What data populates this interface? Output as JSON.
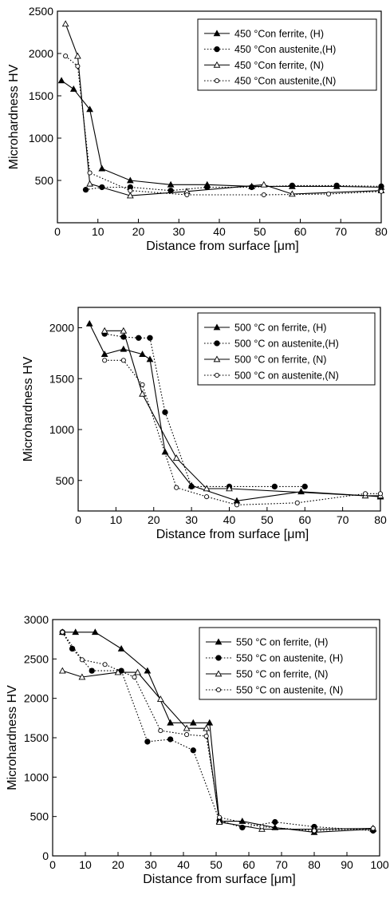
{
  "chart_data": [
    {
      "type": "line",
      "xlabel": "Distance from surface [μm]",
      "ylabel": "Microhardness HV",
      "xlim": [
        0,
        80
      ],
      "ylim": [
        0,
        2500
      ],
      "xticks": [
        0,
        10,
        20,
        30,
        40,
        50,
        60,
        70,
        80
      ],
      "yticks": [
        500,
        1000,
        1500,
        2000,
        2500
      ],
      "grid": false,
      "legend_position": "top-right",
      "series": [
        {
          "name": "450 °Con ferrite, (H)",
          "line": "solid",
          "marker": "triangle-filled",
          "x": [
            1,
            4,
            8,
            11,
            18,
            28,
            37,
            48,
            58,
            69,
            80
          ],
          "y": [
            1680,
            1580,
            1340,
            640,
            500,
            450,
            450,
            430,
            430,
            430,
            420
          ]
        },
        {
          "name": "450 °Con austenite,(H)",
          "line": "dotted",
          "marker": "circle-filled",
          "x": [
            7,
            11,
            18,
            28,
            37,
            48,
            58,
            69,
            80
          ],
          "y": [
            390,
            420,
            420,
            380,
            420,
            420,
            440,
            440,
            430
          ]
        },
        {
          "name": "450 °Con ferrite, (N)",
          "line": "solid",
          "marker": "triangle-open",
          "x": [
            2,
            5,
            8,
            18,
            32,
            51,
            58,
            80
          ],
          "y": [
            2350,
            1970,
            460,
            320,
            370,
            450,
            340,
            380
          ]
        },
        {
          "name": "450 °Con austenite,(N)",
          "line": "dotted",
          "marker": "circle-open",
          "x": [
            2,
            5,
            8,
            18,
            32,
            51,
            67,
            80
          ],
          "y": [
            1970,
            1850,
            590,
            380,
            330,
            330,
            340,
            370
          ]
        }
      ]
    },
    {
      "type": "line",
      "xlabel": "Distance from surface [μm]",
      "ylabel": "Microhardness HV",
      "xlim": [
        0,
        80
      ],
      "ylim": [
        200,
        2200
      ],
      "xticks": [
        0,
        10,
        20,
        30,
        40,
        50,
        60,
        70,
        80
      ],
      "yticks": [
        500,
        1000,
        1500,
        2000
      ],
      "grid": false,
      "legend_position": "top-right",
      "series": [
        {
          "name": "500 °C on ferrite, (H)",
          "line": "solid",
          "marker": "triangle-filled",
          "x": [
            3,
            7,
            12,
            17,
            19,
            23,
            30,
            42,
            59,
            80
          ],
          "y": [
            2040,
            1740,
            1790,
            1740,
            1690,
            780,
            450,
            300,
            390,
            340
          ]
        },
        {
          "name": "500 °C on austenite,(H)",
          "line": "dotted",
          "marker": "circle-filled",
          "x": [
            7,
            12,
            16,
            19,
            23,
            30,
            40,
            52,
            60
          ],
          "y": [
            1940,
            1910,
            1900,
            1900,
            1170,
            440,
            440,
            440,
            440
          ]
        },
        {
          "name": "500 °C on ferrite, (N)",
          "line": "solid",
          "marker": "triangle-open",
          "x": [
            7,
            12,
            17,
            26,
            34,
            40,
            76,
            80
          ],
          "y": [
            1970,
            1970,
            1350,
            720,
            420,
            420,
            350,
            350
          ]
        },
        {
          "name": "500 °C on austenite,(N)",
          "line": "dotted",
          "marker": "circle-open",
          "x": [
            7,
            12,
            17,
            26,
            34,
            42,
            58,
            76,
            80
          ],
          "y": [
            1680,
            1680,
            1440,
            430,
            340,
            260,
            280,
            370,
            370
          ]
        }
      ]
    },
    {
      "type": "line",
      "xlabel": "Distance from surface [μm]",
      "ylabel": "Microhardness HV",
      "xlim": [
        0,
        100
      ],
      "ylim": [
        0,
        3000
      ],
      "xticks": [
        0,
        10,
        20,
        30,
        40,
        50,
        60,
        70,
        80,
        90,
        100
      ],
      "yticks": [
        0,
        500,
        1000,
        1500,
        2000,
        2500,
        3000
      ],
      "grid": false,
      "legend_position": "top-right",
      "series": [
        {
          "name": "550 °C on ferrite, (H)",
          "line": "solid",
          "marker": "triangle-filled",
          "x": [
            3,
            7,
            13,
            21,
            29,
            36,
            43,
            48,
            51,
            58,
            68,
            80,
            98
          ],
          "y": [
            2840,
            2840,
            2840,
            2630,
            2350,
            1690,
            1690,
            1690,
            440,
            440,
            360,
            300,
            340
          ]
        },
        {
          "name": "550 °C on austenite, (H)",
          "line": "dotted",
          "marker": "circle-filled",
          "x": [
            3,
            6,
            12,
            21,
            29,
            36,
            43,
            51,
            58,
            68,
            80,
            98
          ],
          "y": [
            2840,
            2630,
            2350,
            2350,
            1450,
            1480,
            1340,
            450,
            360,
            430,
            370,
            320
          ]
        },
        {
          "name": "550 °C on ferrite, (N)",
          "line": "solid",
          "marker": "triangle-open",
          "x": [
            3,
            9,
            20,
            26,
            33,
            41,
            47,
            51,
            64,
            80,
            98
          ],
          "y": [
            2350,
            2270,
            2330,
            2330,
            1990,
            1620,
            1620,
            430,
            340,
            340,
            350
          ]
        },
        {
          "name": "550 °C on austenite, (N)",
          "line": "dotted",
          "marker": "circle-open",
          "x": [
            3,
            9,
            16,
            25,
            33,
            41,
            47,
            51,
            64,
            80,
            98
          ],
          "y": [
            2840,
            2490,
            2430,
            2270,
            1590,
            1540,
            1520,
            490,
            370,
            320,
            350
          ]
        }
      ]
    }
  ]
}
